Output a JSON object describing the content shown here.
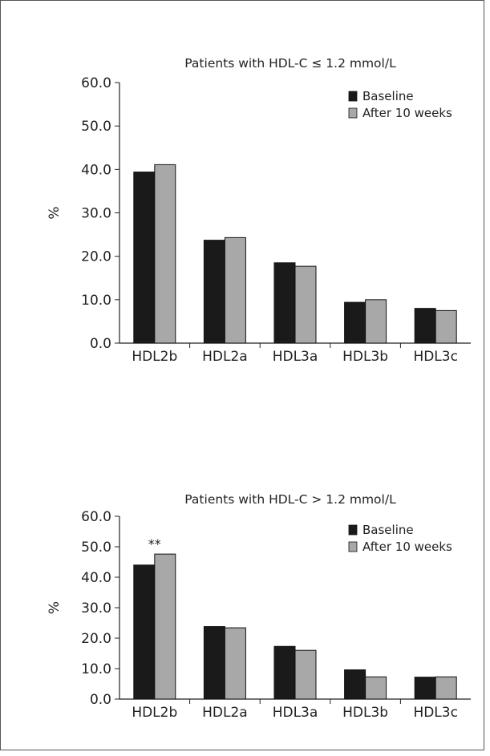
{
  "chart_data": [
    {
      "type": "bar",
      "title": "Patients with HDL-C ≤ 1.2 mmol/L",
      "xlabel": "",
      "ylabel": "%",
      "ylim": [
        0,
        60
      ],
      "yticks": [
        "0.0",
        "10.0",
        "20.0",
        "30.0",
        "40.0",
        "50.0",
        "60.0"
      ],
      "categories": [
        "HDL2b",
        "HDL2a",
        "HDL3a",
        "HDL3b",
        "HDL3c"
      ],
      "series": [
        {
          "name": "Baseline",
          "color": "#1a1a1a",
          "values": [
            39.4,
            23.7,
            18.5,
            9.4,
            8.0
          ]
        },
        {
          "name": "After 10 weeks",
          "color": "#a8a8a8",
          "values": [
            41.1,
            24.3,
            17.7,
            10.0,
            7.5
          ]
        }
      ],
      "annotations": [],
      "legend_position": "top-right",
      "grid": false
    },
    {
      "type": "bar",
      "title": "Patients with HDL-C > 1.2 mmol/L",
      "xlabel": "",
      "ylabel": "%",
      "ylim": [
        0,
        60
      ],
      "yticks": [
        "0.0",
        "10.0",
        "20.0",
        "30.0",
        "40.0",
        "50.0",
        "60.0"
      ],
      "categories": [
        "HDL2b",
        "HDL2a",
        "HDL3a",
        "HDL3b",
        "HDL3c"
      ],
      "series": [
        {
          "name": "Baseline",
          "color": "#1a1a1a",
          "values": [
            44.0,
            23.8,
            17.3,
            9.6,
            7.2
          ]
        },
        {
          "name": "After 10 weeks",
          "color": "#a8a8a8",
          "values": [
            47.6,
            23.4,
            16.0,
            7.3,
            7.3
          ]
        }
      ],
      "annotations": [
        {
          "text": "**",
          "category": "HDL2b",
          "y": 49.5
        }
      ],
      "legend_position": "top-right",
      "grid": false
    }
  ]
}
